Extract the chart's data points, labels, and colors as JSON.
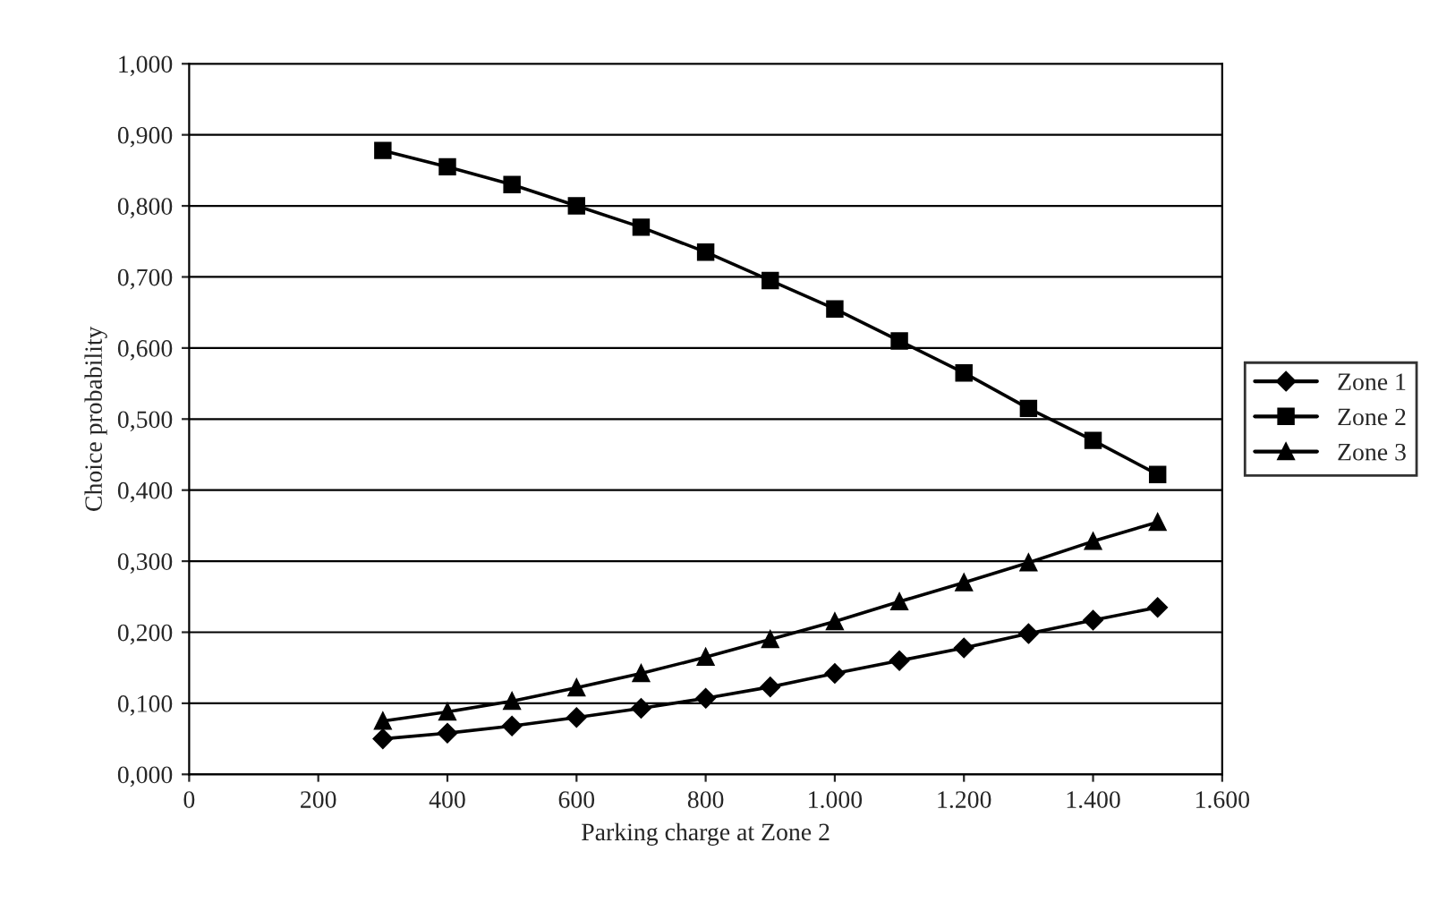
{
  "chart_data": {
    "type": "line",
    "xlabel": "Parking charge at Zone 2",
    "ylabel": "Choice probability",
    "x": [
      300,
      400,
      500,
      600,
      700,
      800,
      900,
      1000,
      1100,
      1200,
      1300,
      1400,
      1500
    ],
    "series": [
      {
        "name": "Zone 1",
        "color": "#000000",
        "marker": "diamond",
        "values": [
          0.05,
          0.058,
          0.068,
          0.08,
          0.093,
          0.107,
          0.123,
          0.142,
          0.16,
          0.178,
          0.198,
          0.217,
          0.235
        ]
      },
      {
        "name": "Zone 2",
        "color": "#000000",
        "marker": "square",
        "values": [
          0.878,
          0.855,
          0.83,
          0.8,
          0.77,
          0.735,
          0.695,
          0.655,
          0.61,
          0.565,
          0.515,
          0.47,
          0.422
        ]
      },
      {
        "name": "Zone 3",
        "color": "#000000",
        "marker": "triangle",
        "values": [
          0.075,
          0.088,
          0.103,
          0.122,
          0.142,
          0.165,
          0.19,
          0.215,
          0.243,
          0.27,
          0.298,
          0.328,
          0.355
        ]
      }
    ],
    "xlim": [
      0,
      1600
    ],
    "xticks": [
      0,
      200,
      400,
      600,
      800,
      {
        "value": 1000,
        "label": "1.000"
      },
      {
        "value": 1200,
        "label": "1.200"
      },
      {
        "value": 1400,
        "label": "1.400"
      },
      {
        "value": 1600,
        "label": "1.600"
      }
    ],
    "ylim": [
      0,
      1
    ],
    "yticks": [
      {
        "value": 0,
        "label": "0,000"
      },
      {
        "value": 0.1,
        "label": "0,100"
      },
      {
        "value": 0.2,
        "label": "0,200"
      },
      {
        "value": 0.3,
        "label": "0,300"
      },
      {
        "value": 0.4,
        "label": "0,400"
      },
      {
        "value": 0.5,
        "label": "0,500"
      },
      {
        "value": 0.6,
        "label": "0,600"
      },
      {
        "value": 0.7,
        "label": "0,700"
      },
      {
        "value": 0.8,
        "label": "0,800"
      },
      {
        "value": 0.9,
        "label": "0,900"
      },
      {
        "value": 1,
        "label": "1,000"
      }
    ],
    "grid": "y",
    "legend": "right",
    "line_style": "solid"
  }
}
